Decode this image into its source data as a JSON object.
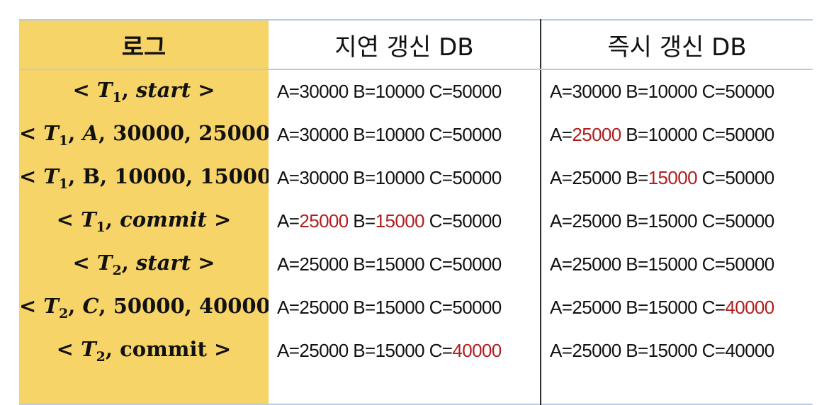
{
  "headers": {
    "log": "로그",
    "deferred": "지연 갱신 DB",
    "immediate": "즉시 갱신 DB"
  },
  "colors": {
    "log_bg": "#f7d468",
    "highlight": "#b01e1e",
    "border": "#b9cbe0"
  },
  "rows": [
    {
      "log": {
        "txn": "T",
        "sub": "1",
        "parts": [
          "start"
        ]
      },
      "deferred": [
        {
          "name": "A",
          "value": "30000",
          "highlight": false
        },
        {
          "name": "B",
          "value": "10000",
          "highlight": false
        },
        {
          "name": "C",
          "value": "50000",
          "highlight": false
        }
      ],
      "immediate": [
        {
          "name": "A",
          "value": "30000",
          "highlight": false
        },
        {
          "name": "B",
          "value": "10000",
          "highlight": false
        },
        {
          "name": "C",
          "value": "50000",
          "highlight": false
        }
      ]
    },
    {
      "log": {
        "txn": "T",
        "sub": "1",
        "parts": [
          "A",
          "30000",
          "25000"
        ]
      },
      "deferred": [
        {
          "name": "A",
          "value": "30000",
          "highlight": false
        },
        {
          "name": "B",
          "value": "10000",
          "highlight": false
        },
        {
          "name": "C",
          "value": "50000",
          "highlight": false
        }
      ],
      "immediate": [
        {
          "name": "A",
          "value": "25000",
          "highlight": true
        },
        {
          "name": "B",
          "value": "10000",
          "highlight": false
        },
        {
          "name": "C",
          "value": "50000",
          "highlight": false
        }
      ]
    },
    {
      "log": {
        "txn": "T",
        "sub": "1",
        "parts": [
          "B",
          "10000",
          "15000"
        ]
      },
      "deferred": [
        {
          "name": "A",
          "value": "30000",
          "highlight": false
        },
        {
          "name": "B",
          "value": "10000",
          "highlight": false
        },
        {
          "name": "C",
          "value": "50000",
          "highlight": false
        }
      ],
      "immediate": [
        {
          "name": "A",
          "value": "25000",
          "highlight": false
        },
        {
          "name": "B",
          "value": "15000",
          "highlight": true
        },
        {
          "name": "C",
          "value": "50000",
          "highlight": false
        }
      ]
    },
    {
      "log": {
        "txn": "T",
        "sub": "1",
        "parts": [
          "commit"
        ]
      },
      "deferred": [
        {
          "name": "A",
          "value": "25000",
          "highlight": true
        },
        {
          "name": "B",
          "value": "15000",
          "highlight": true
        },
        {
          "name": "C",
          "value": "50000",
          "highlight": false
        }
      ],
      "immediate": [
        {
          "name": "A",
          "value": "25000",
          "highlight": false
        },
        {
          "name": "B",
          "value": "15000",
          "highlight": false
        },
        {
          "name": "C",
          "value": "50000",
          "highlight": false
        }
      ]
    },
    {
      "log": {
        "txn": "T",
        "sub": "2",
        "parts": [
          "start"
        ]
      },
      "deferred": [
        {
          "name": "A",
          "value": "25000",
          "highlight": false
        },
        {
          "name": "B",
          "value": "15000",
          "highlight": false
        },
        {
          "name": "C",
          "value": "50000",
          "highlight": false
        }
      ],
      "immediate": [
        {
          "name": "A",
          "value": "25000",
          "highlight": false
        },
        {
          "name": "B",
          "value": "15000",
          "highlight": false
        },
        {
          "name": "C",
          "value": "50000",
          "highlight": false
        }
      ]
    },
    {
      "log": {
        "txn": "T",
        "sub": "2",
        "parts": [
          "C",
          "50000",
          "40000"
        ]
      },
      "deferred": [
        {
          "name": "A",
          "value": "25000",
          "highlight": false
        },
        {
          "name": "B",
          "value": "15000",
          "highlight": false
        },
        {
          "name": "C",
          "value": "50000",
          "highlight": false
        }
      ],
      "immediate": [
        {
          "name": "A",
          "value": "25000",
          "highlight": false
        },
        {
          "name": "B",
          "value": "15000",
          "highlight": false
        },
        {
          "name": "C",
          "value": "40000",
          "highlight": true
        }
      ]
    },
    {
      "log": {
        "txn": "T",
        "sub": "2",
        "parts": [
          "commit"
        ]
      },
      "deferred": [
        {
          "name": "A",
          "value": "25000",
          "highlight": false
        },
        {
          "name": "B",
          "value": "15000",
          "highlight": false
        },
        {
          "name": "C",
          "value": "40000",
          "highlight": true
        }
      ],
      "immediate": [
        {
          "name": "A",
          "value": "25000",
          "highlight": false
        },
        {
          "name": "B",
          "value": "15000",
          "highlight": false
        },
        {
          "name": "C",
          "value": "40000",
          "highlight": false
        }
      ]
    }
  ]
}
